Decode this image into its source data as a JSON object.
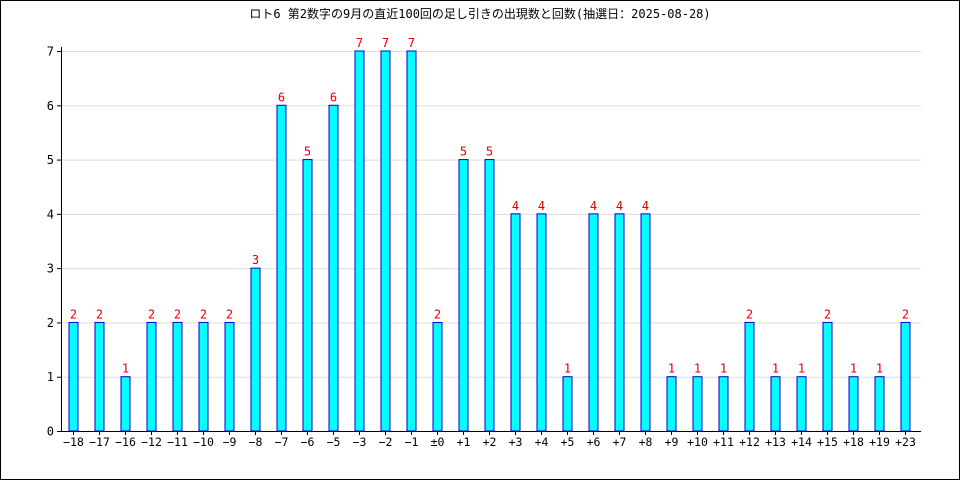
{
  "title": "ロト6 第2数字の9月の直近100回の足し引きの出現数と回数(抽選日：2025-08-28)",
  "colors": {
    "bar_fill": "#00ffff",
    "bar_stroke": "#0000cc",
    "label_color": "#e00000",
    "grid": "#dddddd",
    "axis": "#000000"
  },
  "chart_data": {
    "type": "bar",
    "categories": [
      "−18",
      "−17",
      "−16",
      "−12",
      "−11",
      "−10",
      "−9",
      "−8",
      "−7",
      "−6",
      "−5",
      "−3",
      "−2",
      "−1",
      "±0",
      "+1",
      "+2",
      "+3",
      "+4",
      "+5",
      "+6",
      "+7",
      "+8",
      "+9",
      "+10",
      "+11",
      "+12",
      "+13",
      "+14",
      "+15",
      "+18",
      "+19",
      "+23"
    ],
    "values": [
      2,
      2,
      1,
      2,
      2,
      2,
      2,
      3,
      6,
      5,
      6,
      7,
      7,
      7,
      2,
      5,
      5,
      4,
      4,
      1,
      4,
      4,
      4,
      1,
      1,
      1,
      2,
      1,
      1,
      2,
      1,
      1,
      2
    ],
    "ylim": [
      0,
      7
    ],
    "yticks": [
      0,
      1,
      2,
      3,
      4,
      5,
      6,
      7
    ],
    "grid": true,
    "data_labels": true
  }
}
